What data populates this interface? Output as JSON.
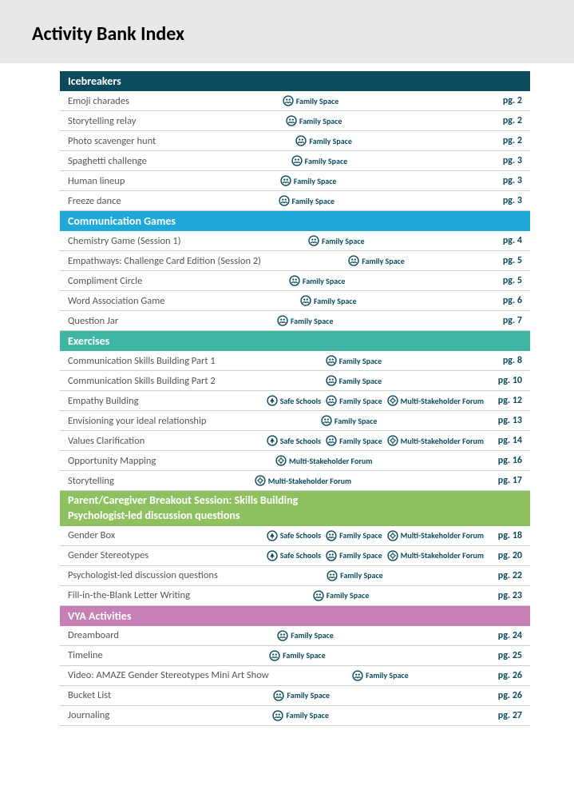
{
  "page_title": "Activity Bank Index",
  "tag_color": "#0c4a5e",
  "tagTypes": {
    "safe": {
      "label": "Safe Schools"
    },
    "family": {
      "label": "Family Space"
    },
    "multi": {
      "label": "Multi-Stakeholder Forum"
    }
  },
  "sections": [
    {
      "id": "icebreakers",
      "title": "Icebreakers",
      "bg": "#0c4a5e",
      "rows": [
        {
          "title": "Emoji charades",
          "tags": [
            "family"
          ],
          "page": "pg. 2"
        },
        {
          "title": "Storytelling relay",
          "tags": [
            "family"
          ],
          "page": "pg. 2"
        },
        {
          "title": "Photo scavenger hunt",
          "tags": [
            "family"
          ],
          "page": "pg. 2"
        },
        {
          "title": "Spaghetti challenge",
          "tags": [
            "family"
          ],
          "page": "pg. 3"
        },
        {
          "title": "Human lineup",
          "tags": [
            "family"
          ],
          "page": "pg. 3"
        },
        {
          "title": "Freeze dance",
          "tags": [
            "family"
          ],
          "page": "pg. 3"
        }
      ]
    },
    {
      "id": "communication",
      "title": "Communication Games",
      "bg": "#1fa8d8",
      "rows": [
        {
          "title": "Chemistry Game (Session 1)",
          "tags": [
            "family"
          ],
          "page": "pg. 4"
        },
        {
          "title": "Empathways: Challenge Card Edition (Session 2)",
          "tags": [
            "family"
          ],
          "page": "pg. 5"
        },
        {
          "title": "Compliment Circle",
          "tags": [
            "family"
          ],
          "page": "pg. 5"
        },
        {
          "title": "Word Association Game",
          "tags": [
            "family"
          ],
          "page": "pg. 6"
        },
        {
          "title": "Question Jar",
          "tags": [
            "family"
          ],
          "page": "pg. 7"
        }
      ]
    },
    {
      "id": "exercises",
      "title": "Exercises",
      "bg": "#3eb8a5",
      "rows": [
        {
          "title": "Communication Skills Building Part 1",
          "tags": [
            "family"
          ],
          "page": "pg. 8"
        },
        {
          "title": "Communication Skills Building Part 2",
          "tags": [
            "family"
          ],
          "page": "pg. 10"
        },
        {
          "title": "Empathy Building",
          "tags": [
            "safe",
            "family",
            "multi"
          ],
          "page": "pg. 12"
        },
        {
          "title": "Envisioning your ideal relationship",
          "tags": [
            "family"
          ],
          "page": "pg. 13"
        },
        {
          "title": "Values Clarification",
          "tags": [
            "safe",
            "family",
            "multi"
          ],
          "page": "pg. 14"
        },
        {
          "title": "Opportunity Mapping",
          "tags": [
            "multi"
          ],
          "page": "pg. 16"
        },
        {
          "title": "Storytelling",
          "tags": [
            "multi"
          ],
          "page": "pg. 17"
        }
      ]
    },
    {
      "id": "parent",
      "title_line1": "Parent/Caregiver Breakout Session: Skills Building",
      "title_line2": "Psychologist-led discussion questions",
      "bg": "#8fc060",
      "rows": [
        {
          "title": "Gender Box",
          "tags": [
            "safe",
            "family",
            "multi"
          ],
          "page": "pg. 18"
        },
        {
          "title": "Gender Stereotypes",
          "tags": [
            "safe",
            "family",
            "multi"
          ],
          "page": "pg. 20"
        },
        {
          "title": "Psychologist-led discussion questions",
          "tags": [
            "family"
          ],
          "page": "pg. 22"
        },
        {
          "title": "Fill-in-the-Blank Letter Writing",
          "tags": [
            "family"
          ],
          "page": "pg. 23"
        }
      ]
    },
    {
      "id": "vya",
      "title": "VYA Activities",
      "bg": "#c77fb5",
      "rows": [
        {
          "title": "Dreamboard",
          "tags": [
            "family"
          ],
          "page": "pg. 24"
        },
        {
          "title": "Timeline",
          "tags": [
            "family"
          ],
          "page": "pg. 25"
        },
        {
          "title": "Video: AMAZE Gender Stereotypes Mini Art Show",
          "tags": [
            "family"
          ],
          "page": "pg. 26"
        },
        {
          "title": "Bucket List",
          "tags": [
            "family"
          ],
          "page": "pg. 26"
        },
        {
          "title": "Journaling",
          "tags": [
            "family"
          ],
          "page": "pg. 27"
        }
      ]
    }
  ]
}
